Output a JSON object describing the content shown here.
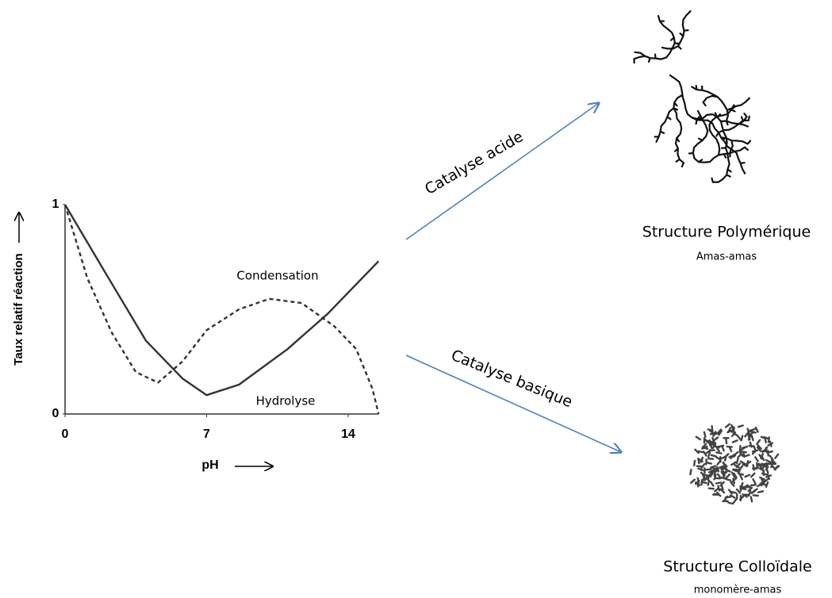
{
  "chart_data": {
    "type": "line",
    "y_label": "Taux relatif réaction",
    "x_label": "pH",
    "xlim": [
      0,
      15.5
    ],
    "ylim": [
      0,
      1
    ],
    "xticks": [
      0,
      7,
      14
    ],
    "yticks": [
      0,
      1
    ],
    "series": [
      {
        "name": "Hydrolyse",
        "color": "#333333",
        "dash": false,
        "x": [
          0,
          1.9,
          4.0,
          5.8,
          7,
          8.6,
          11,
          13,
          15.5
        ],
        "values": [
          1,
          0.69,
          0.35,
          0.17,
          0.09,
          0.14,
          0.31,
          0.48,
          0.73
        ]
      },
      {
        "name": "Condensation",
        "color": "#333333",
        "dash": true,
        "x": [
          0,
          1.1,
          2.3,
          3.5,
          4.6,
          5.8,
          7,
          8.6,
          10.1,
          11.7,
          13.3,
          14.4,
          15.2,
          15.5
        ],
        "values": [
          1,
          0.65,
          0.39,
          0.2,
          0.15,
          0.25,
          0.4,
          0.5,
          0.55,
          0.53,
          0.42,
          0.31,
          0.12,
          0
        ]
      }
    ]
  },
  "arrows": [
    {
      "label": "Catalyse acide"
    },
    {
      "label": "Catalyse basique"
    }
  ],
  "structures": [
    {
      "title": "Structure  Polymérique",
      "subtitle": "Amas-amas"
    },
    {
      "title": "Structure  Colloïdale",
      "subtitle": "monomère-amas"
    }
  ]
}
